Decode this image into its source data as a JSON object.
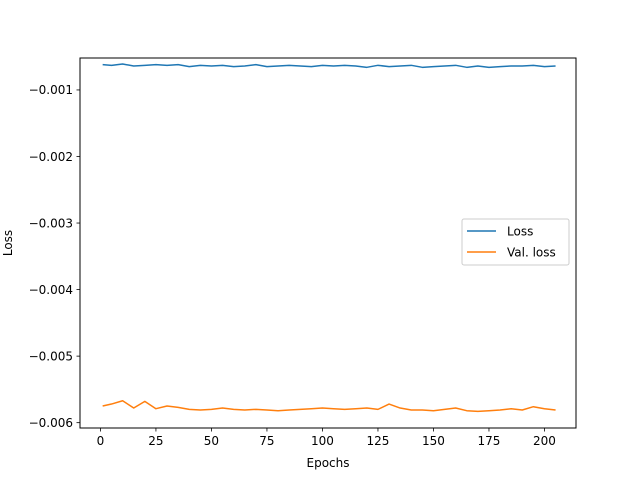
{
  "chart_data": {
    "type": "line",
    "title": "",
    "xlabel": "Epochs",
    "ylabel": "Loss",
    "xlim": [
      -9.2,
      214.2
    ],
    "ylim": [
      -0.00608,
      -0.00052
    ],
    "xticks": [
      0,
      25,
      50,
      75,
      100,
      125,
      150,
      175,
      200
    ],
    "yticks": [
      -0.001,
      -0.002,
      -0.003,
      -0.004,
      -0.005,
      -0.006
    ],
    "xtick_labels": [
      "0",
      "25",
      "50",
      "75",
      "100",
      "125",
      "150",
      "175",
      "200"
    ],
    "ytick_labels": [
      "−0.001",
      "−0.002",
      "−0.003",
      "−0.004",
      "−0.005",
      "−0.006"
    ],
    "grid": false,
    "legend_position": "center-right",
    "series": [
      {
        "name": "Loss",
        "color": "#1f77b4",
        "x": [
          1,
          5,
          10,
          15,
          20,
          25,
          30,
          35,
          40,
          45,
          50,
          55,
          60,
          65,
          70,
          75,
          80,
          85,
          90,
          95,
          100,
          105,
          110,
          115,
          120,
          125,
          130,
          135,
          140,
          145,
          150,
          155,
          160,
          165,
          170,
          175,
          180,
          185,
          190,
          195,
          200,
          205
        ],
        "y": [
          -0.00062,
          -0.00063,
          -0.00061,
          -0.00064,
          -0.00063,
          -0.00062,
          -0.00063,
          -0.00062,
          -0.00065,
          -0.00063,
          -0.00064,
          -0.00063,
          -0.00065,
          -0.00064,
          -0.00062,
          -0.00065,
          -0.00064,
          -0.00063,
          -0.00064,
          -0.00065,
          -0.00063,
          -0.00064,
          -0.00063,
          -0.00064,
          -0.00066,
          -0.00063,
          -0.00065,
          -0.00064,
          -0.00063,
          -0.00066,
          -0.00065,
          -0.00064,
          -0.00063,
          -0.00066,
          -0.00064,
          -0.00066,
          -0.00065,
          -0.00064,
          -0.00064,
          -0.00063,
          -0.00065,
          -0.00064
        ]
      },
      {
        "name": "Val. loss",
        "color": "#ff7f0e",
        "x": [
          1,
          5,
          10,
          15,
          20,
          25,
          30,
          35,
          40,
          45,
          50,
          55,
          60,
          65,
          70,
          75,
          80,
          85,
          90,
          95,
          100,
          105,
          110,
          115,
          120,
          125,
          130,
          135,
          140,
          145,
          150,
          155,
          160,
          165,
          170,
          175,
          180,
          185,
          190,
          195,
          200,
          205
        ],
        "y": [
          -0.00575,
          -0.00572,
          -0.00567,
          -0.00578,
          -0.00568,
          -0.00579,
          -0.00575,
          -0.00577,
          -0.0058,
          -0.00581,
          -0.0058,
          -0.00578,
          -0.0058,
          -0.00581,
          -0.0058,
          -0.00581,
          -0.00582,
          -0.00581,
          -0.0058,
          -0.00579,
          -0.00578,
          -0.00579,
          -0.0058,
          -0.00579,
          -0.00578,
          -0.0058,
          -0.00572,
          -0.00578,
          -0.00581,
          -0.00581,
          -0.00582,
          -0.0058,
          -0.00578,
          -0.00582,
          -0.00583,
          -0.00582,
          -0.00581,
          -0.00579,
          -0.00581,
          -0.00576,
          -0.00579,
          -0.00581
        ]
      }
    ]
  }
}
